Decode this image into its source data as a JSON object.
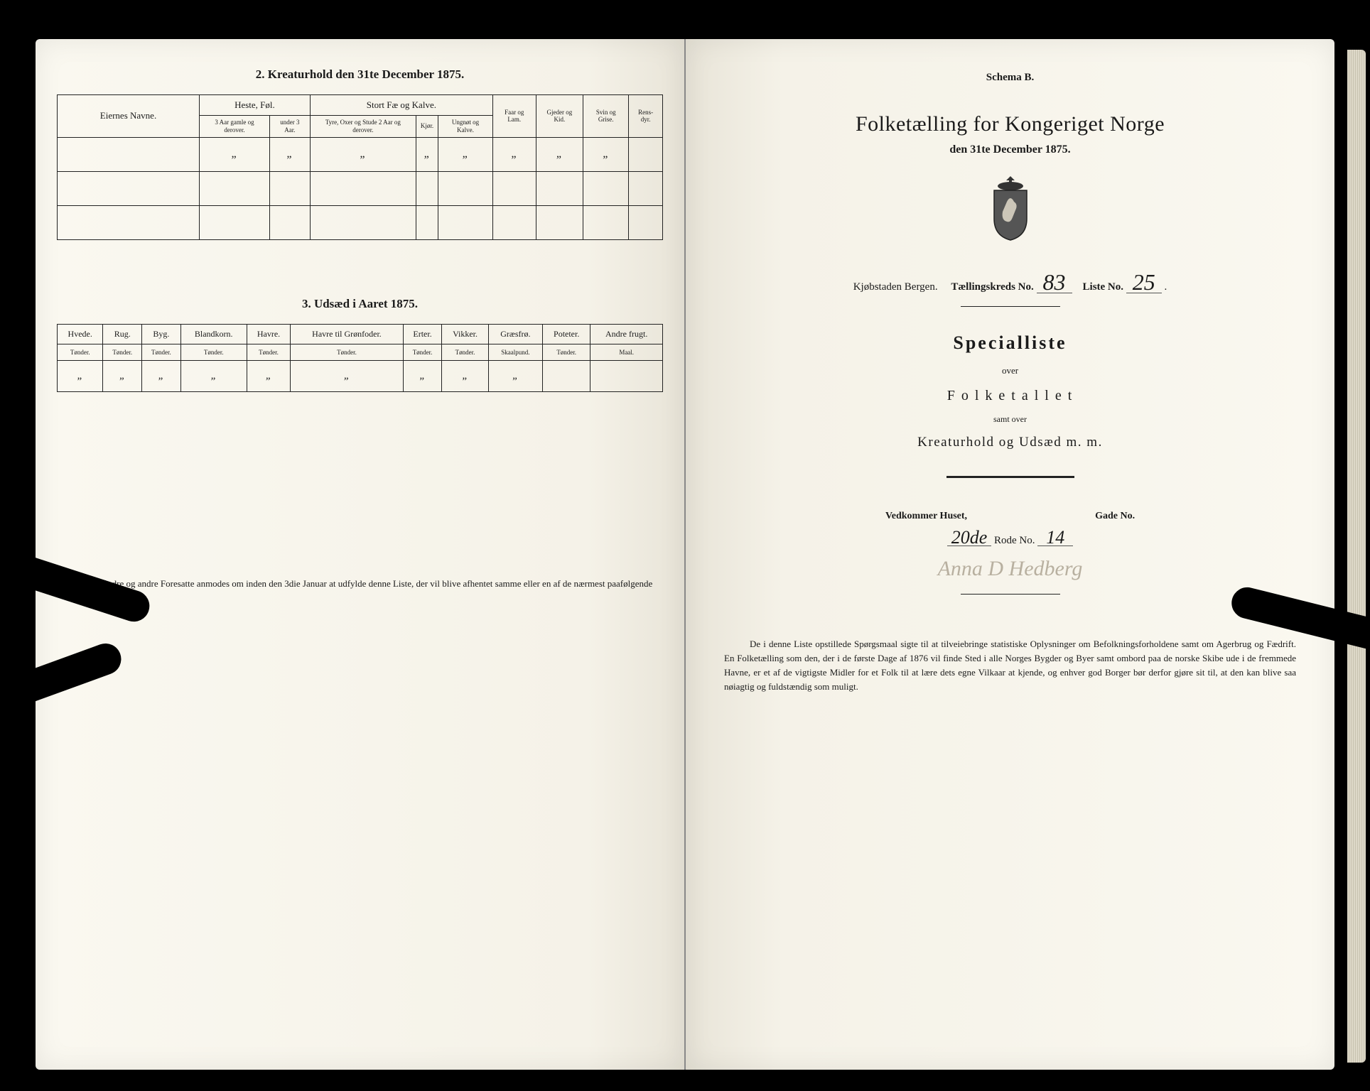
{
  "left": {
    "section2_title": "2.  Kreaturhold den 31te December 1875.",
    "table1": {
      "eier_header": "Eiernes Navne.",
      "groups": [
        "Heste, Føl.",
        "Stort Fæ og Kalve."
      ],
      "extra_groups": [
        "Faar og Lam.",
        "Gjeder og Kid.",
        "Svin og Grise.",
        "Rens-dyr."
      ],
      "subs_heste": [
        "3 Aar gamle og derover.",
        "under 3 Aar."
      ],
      "subs_fae": [
        "Tyre, Oxer og Stude 2 Aar og derover.",
        "Kjør.",
        "Ungnøt og Kalve."
      ],
      "ditto": "„"
    },
    "section3_title": "3.  Udsæd i Aaret 1875.",
    "table2": {
      "cols": [
        "Hvede.",
        "Rug.",
        "Byg.",
        "Blandkorn.",
        "Havre.",
        "Havre til Grønfoder.",
        "Erter.",
        "Vikker.",
        "Græsfrø.",
        "Poteter.",
        "Andre frugt."
      ],
      "units": [
        "Tønder.",
        "Tønder.",
        "Tønder.",
        "Tønder.",
        "Tønder.",
        "Tønder.",
        "Tønder.",
        "Tønder.",
        "Skaalpund.",
        "Tønder.",
        "Maal."
      ],
      "ditto": "„"
    },
    "footnote": "Husfædre og andre Foresatte anmodes om inden den 3die Januar at udfylde denne Liste, der vil blive afhentet samme eller en af de nærmest paafølgende Dage."
  },
  "right": {
    "schema": "Schema B.",
    "main_title": "Folketælling for Kongeriget Norge",
    "sub_title": "den 31te December 1875.",
    "town_label": "Kjøbstaden Bergen.",
    "kreds_label": "Tællingskreds No.",
    "kreds_no": "83",
    "liste_label": "Liste No.",
    "liste_no": "25",
    "special": "Specialliste",
    "over": "over",
    "folketallet": "F o l k e t a l l e t",
    "samt": "samt over",
    "kreatur": "Kreaturhold og Udsæd m. m.",
    "house_label": "Vedkommer Huset,",
    "gade_label": "Gade No.",
    "rode_prefix": "20de",
    "rode_label": "Rode No.",
    "rode_no": "14",
    "signature": "Anna D Hedberg",
    "bottom": "De i denne Liste opstillede Spørgsmaal sigte til at tilveiebringe statistiske Oplysninger om Befolkningsforholdene samt om Agerbrug og Fædrift.  En Folketælling som den, der i de første Dage af 1876 vil finde Sted i alle Norges Bygder og Byer samt ombord paa de norske Skibe ude i de fremmede Havne, er et af de vigtigste Midler for et Folk til at lære dets egne Vilkaar at kjende, og enhver god Borger bør derfor gjøre sit til, at den kan blive saa nøiagtig og fuldstændig som muligt."
  },
  "colors": {
    "paper": "#faf8f0",
    "ink": "#1a1a1a",
    "pencil": "#b8b0a0"
  }
}
